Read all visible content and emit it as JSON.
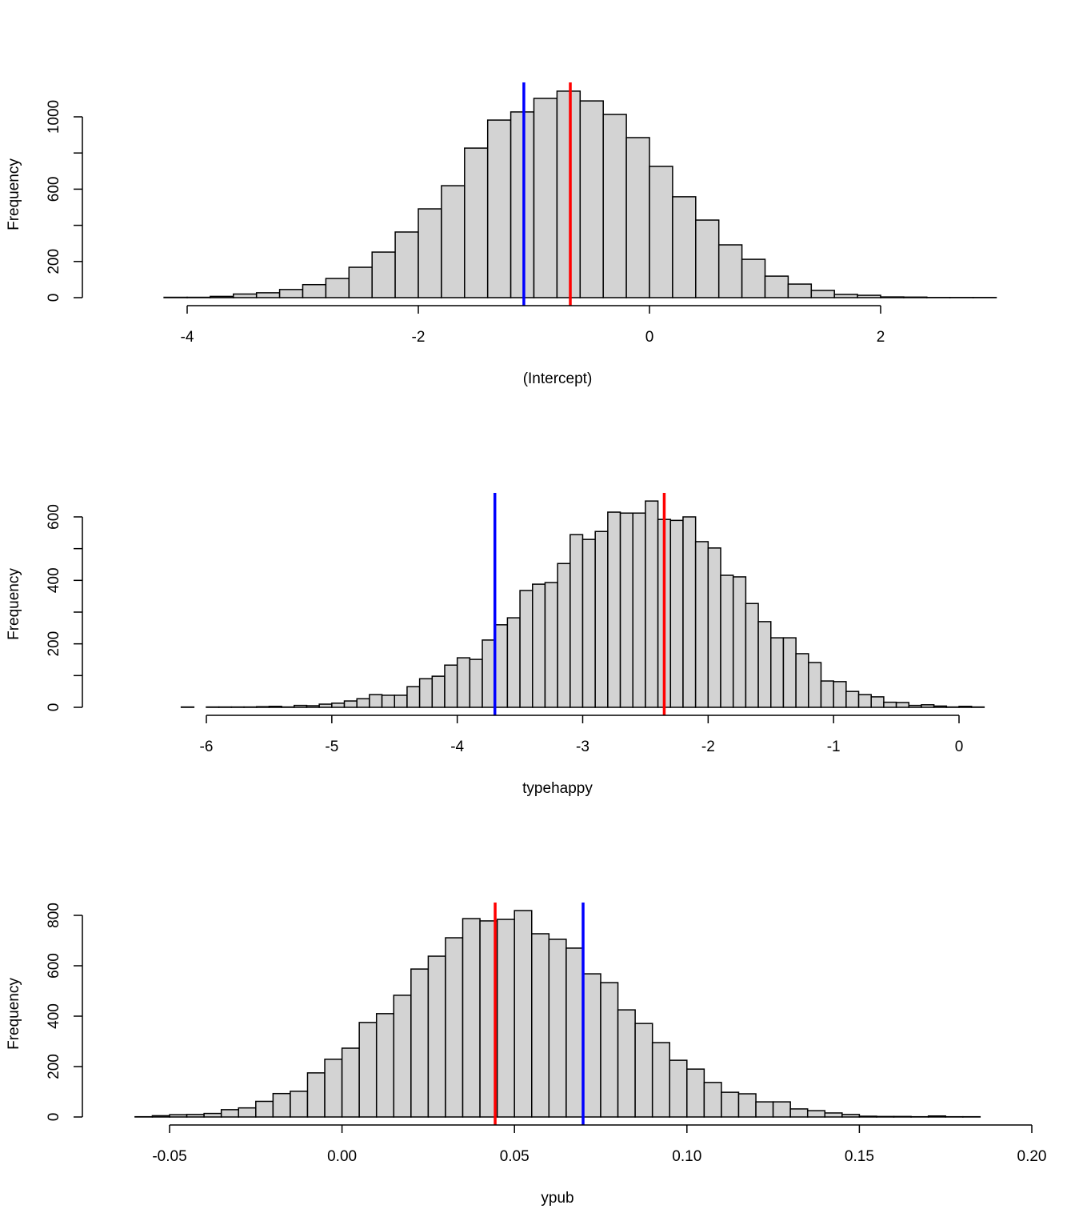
{
  "chart_data": [
    {
      "type": "histogram",
      "xlabel": "(Intercept)",
      "ylabel": "Frequency",
      "bin_start": -4.6,
      "bin_width": 0.2,
      "values": [
        0,
        0,
        2,
        2,
        7,
        20,
        27,
        45,
        72,
        106,
        168,
        252,
        363,
        491,
        619,
        827,
        982,
        1027,
        1102,
        1142,
        1088,
        1013,
        885,
        726,
        558,
        429,
        292,
        212,
        119,
        75,
        40,
        18,
        13,
        4,
        3,
        1,
        1,
        1
      ],
      "xticks": [
        -4,
        -2,
        0,
        2
      ],
      "xtick_labels": [
        "-4",
        "-2",
        "0",
        "2"
      ],
      "yticks": [
        0,
        200,
        600,
        1000
      ],
      "yticks_minor": [
        400,
        800
      ],
      "ytick_labels": [
        "0",
        "200",
        "600",
        "1000"
      ],
      "xlim": [
        -4.6,
        3.0
      ],
      "ylim": [
        0,
        1142
      ],
      "vlines": [
        {
          "x": -1.087,
          "color": "#0000ff"
        },
        {
          "x": -0.685,
          "color": "#ff0000"
        }
      ],
      "bar_color": "#d3d3d3"
    },
    {
      "type": "histogram",
      "xlabel": "typehappy",
      "ylabel": "Frequency",
      "bin_start": -6.7,
      "bin_width": 0.1,
      "values": [
        0,
        0,
        0,
        0,
        0,
        1,
        0,
        1,
        1,
        1,
        1,
        2,
        3,
        1,
        6,
        5,
        10,
        13,
        20,
        27,
        40,
        38,
        38,
        65,
        90,
        98,
        133,
        156,
        151,
        212,
        260,
        282,
        368,
        388,
        393,
        453,
        544,
        529,
        554,
        615,
        612,
        612,
        650,
        592,
        589,
        600,
        522,
        502,
        416,
        411,
        327,
        270,
        219,
        219,
        169,
        141,
        83,
        81,
        50,
        40,
        33,
        16,
        15,
        6,
        8,
        4,
        1,
        3,
        1,
        0
      ],
      "xticks": [
        -6,
        -5,
        -4,
        -3,
        -2,
        -1,
        0
      ],
      "xtick_labels": [
        "-6",
        "-5",
        "-4",
        "-3",
        "-2",
        "-1",
        "0"
      ],
      "yticks": [
        0,
        200,
        400,
        600
      ],
      "yticks_minor": [
        100,
        300,
        500
      ],
      "ytick_labels": [
        "0",
        "200",
        "400",
        "600"
      ],
      "xlim": [
        -6.7,
        0.3
      ],
      "ylim": [
        0,
        650
      ],
      "vlines": [
        {
          "x": -3.7,
          "color": "#0000ff"
        },
        {
          "x": -2.35,
          "color": "#ff0000"
        }
      ],
      "bar_color": "#d3d3d3"
    },
    {
      "type": "histogram",
      "xlabel": "ypub",
      "ylabel": "Frequency",
      "bin_start": -0.065,
      "bin_width": 0.005,
      "values": [
        0,
        1,
        5,
        9,
        10,
        14,
        29,
        36,
        62,
        93,
        102,
        175,
        229,
        273,
        375,
        410,
        483,
        587,
        638,
        711,
        787,
        778,
        784,
        819,
        727,
        705,
        670,
        568,
        533,
        425,
        371,
        295,
        225,
        190,
        137,
        98,
        92,
        60,
        60,
        32,
        25,
        16,
        10,
        3,
        2,
        2,
        1,
        4,
        1,
        1,
        0
      ],
      "xticks": [
        -0.05,
        0.0,
        0.05,
        0.1,
        0.15,
        0.2
      ],
      "xtick_labels": [
        "-0.05",
        "0.00",
        "0.05",
        "0.10",
        "0.15",
        "0.20"
      ],
      "yticks": [
        0,
        200,
        400,
        600,
        800
      ],
      "yticks_minor": [],
      "ytick_labels": [
        "0",
        "200",
        "400",
        "600",
        "800"
      ],
      "xlim": [
        -0.065,
        0.19
      ],
      "ylim": [
        0,
        819
      ],
      "vlines": [
        {
          "x": 0.0444,
          "color": "#ff0000"
        },
        {
          "x": 0.0699,
          "color": "#0000ff"
        }
      ],
      "bar_color": "#d3d3d3"
    }
  ]
}
